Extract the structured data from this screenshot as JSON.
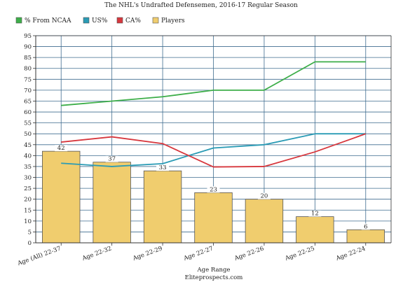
{
  "chart_data": {
    "type": "bar",
    "title": "The NHL's Undrafted Defensemen, 2016-17 Regular Season",
    "xlabel": "Age Range",
    "source": "Eliteprospects.com",
    "ylabel": "",
    "ylim": [
      0,
      95
    ],
    "ytick_step": 5,
    "grid": true,
    "legend_position": "top-left",
    "categories": [
      "Age (All) 22-37",
      "Age 22-32",
      "Age 22-29",
      "Age 22-27",
      "Age 22-26",
      "Age 22-25",
      "Age 22-24"
    ],
    "series": [
      {
        "name": "% From NCAA",
        "type": "line",
        "color": "#3dae49",
        "values": [
          63,
          65,
          67,
          70,
          70,
          83,
          83
        ]
      },
      {
        "name": "US%",
        "type": "line",
        "color": "#2a9bb5",
        "values": [
          36.5,
          35,
          36.3,
          43.5,
          45,
          50,
          50
        ]
      },
      {
        "name": "CA%",
        "type": "line",
        "color": "#d7373d",
        "values": [
          46.2,
          48.6,
          45.5,
          34.8,
          35,
          41.7,
          50
        ]
      },
      {
        "name": "Players",
        "type": "bar",
        "color": "#f0cd6e",
        "values": [
          42,
          37,
          33,
          23,
          20,
          12,
          6
        ]
      }
    ]
  }
}
